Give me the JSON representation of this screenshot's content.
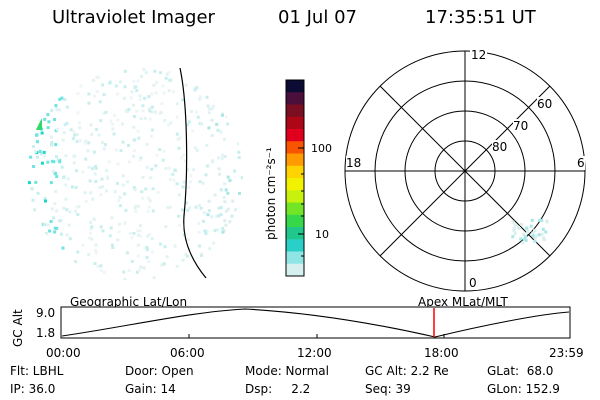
{
  "header": {
    "instrument": "Ultraviolet Imager",
    "date": "01 Jul 07",
    "time": "17:35:51 UT"
  },
  "colorbar": {
    "unit_label": "photon cm⁻²s⁻¹",
    "tick_labels": [
      "100",
      "10"
    ],
    "colors": [
      "#0b0b33",
      "#4a0f3a",
      "#7a0f22",
      "#ad0616",
      "#e0001e",
      "#f95400",
      "#ff9a00",
      "#ffd300",
      "#f2f200",
      "#c9f10e",
      "#72e626",
      "#36d84a",
      "#1fc78a",
      "#2ad0c8",
      "#8fe4e4",
      "#d6efef"
    ]
  },
  "polar": {
    "clock_labels": [
      "12",
      "18",
      "6",
      "0"
    ],
    "lat_labels": [
      "60",
      "70",
      "80"
    ]
  },
  "timeline": {
    "left_label": "Geographic Lat/Lon",
    "right_label": "Apex  MLat/MLT",
    "axis_title": "GC Alt",
    "y_tick_labels": [
      "9.0",
      "1.8"
    ],
    "x_tick_labels": [
      "00:00",
      "06:00",
      "12:00",
      "18:00",
      "23:59"
    ],
    "marker_color": "#ff0000"
  },
  "status": {
    "row1": [
      "Flt: LBHL",
      "Door: Open",
      "Mode: Normal",
      "GC Alt: 2.2 Re",
      "GLat:  68.0"
    ],
    "row2": [
      "IP: 36.0",
      "Gain: 14",
      "Dsp:     2.2",
      "Seq: 39",
      "GLon: 152.9"
    ]
  },
  "icons": {
    "earth_image": "earth-disk-icon",
    "polar_plot": "polar-grid-icon"
  }
}
